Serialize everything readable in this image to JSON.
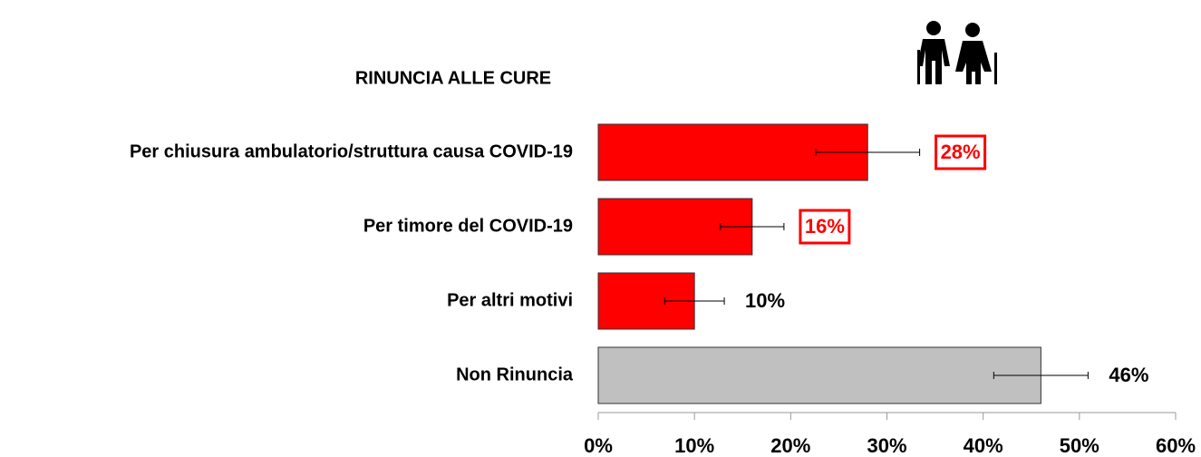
{
  "chart_data": {
    "type": "bar",
    "orientation": "horizontal",
    "title": "RINUNCIA ALLE CURE",
    "categories": [
      "Per chiusura ambulatorio/struttura causa COVID-19",
      "Per timore del COVID-19",
      "Per altri motivi",
      "Non Rinuncia"
    ],
    "values": [
      28,
      16,
      10,
      46
    ],
    "value_labels": [
      "28%",
      "16%",
      "10%",
      "46%"
    ],
    "errors": [
      5.4,
      3.3,
      3.1,
      4.9
    ],
    "colors": [
      "#ff0000",
      "#ff0000",
      "#ff0000",
      "#c0c0c0"
    ],
    "value_label_colors": [
      "#ff0000",
      "#ff0000",
      "#000000",
      "#000000"
    ],
    "boxed_labels": [
      true,
      true,
      false,
      false
    ],
    "xlim": [
      0,
      60
    ],
    "xticks": [
      {
        "value": 0,
        "label": "0%"
      },
      {
        "value": 10,
        "label": "10%"
      },
      {
        "value": 20,
        "label": "20%"
      },
      {
        "value": 30,
        "label": "30%"
      },
      {
        "value": 40,
        "label": "40%"
      },
      {
        "value": 50,
        "label": "50%"
      },
      {
        "value": 60,
        "label": "60%"
      }
    ]
  }
}
